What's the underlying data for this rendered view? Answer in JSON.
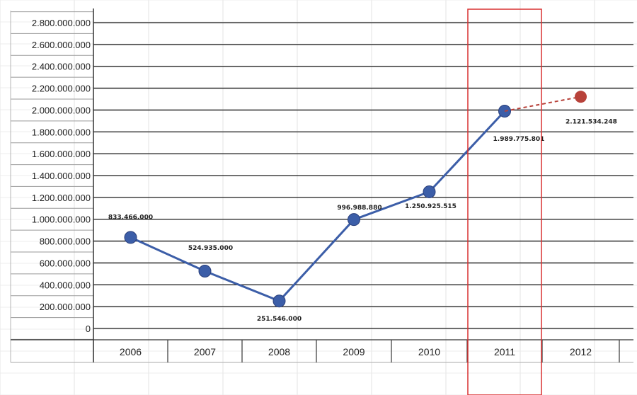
{
  "chart_data": {
    "type": "line",
    "categories": [
      "2006",
      "2007",
      "2008",
      "2009",
      "2010",
      "2011",
      "2012"
    ],
    "y_tick_labels": [
      "0",
      "200.000.000",
      "400.000.000",
      "600.000.000",
      "800.000.000",
      "1.000.000.000",
      "1.200.000.000",
      "1.400.000.000",
      "1.600.000.000",
      "1.800.000.000",
      "2.000.000.000",
      "2.200.000.000",
      "2.400.000.000",
      "2.600.000.000",
      "2.800.000.000"
    ],
    "ylim": [
      0,
      2800000000
    ],
    "grid": true,
    "legend": "none",
    "highlighted_category": "2011",
    "series": [
      {
        "style": "solid",
        "color": "#3c5ea8",
        "values": [
          833466000,
          524935000,
          251546000,
          996988880,
          1250925515,
          1989775801,
          null
        ],
        "labels": [
          "833.466.000",
          "524.935.000",
          "251.546.000",
          "996.988.880",
          "1.250.925.515",
          "1.989.775.801",
          ""
        ]
      },
      {
        "style": "dashed",
        "color": "#b8423a",
        "values": [
          null,
          null,
          null,
          null,
          null,
          1989775801,
          2121534248
        ],
        "labels": [
          "",
          "",
          "",
          "",
          "",
          "",
          "2.121.534.248"
        ]
      }
    ],
    "highlight_color": "#d93030"
  }
}
